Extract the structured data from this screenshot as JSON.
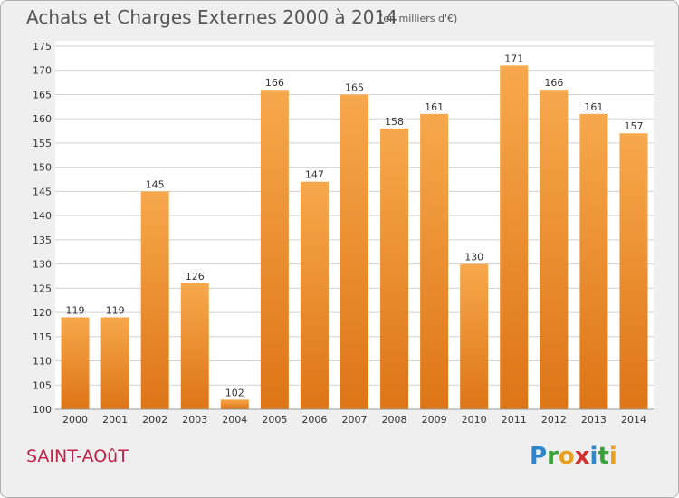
{
  "header": {
    "title": "Achats et Charges Externes 2000 à 2014",
    "subtitle": "(en milliers d'€)"
  },
  "footer": {
    "commune": "SAINT-AOûT",
    "logo_letters": [
      {
        "char": "P",
        "color": "#2e86c8"
      },
      {
        "char": "r",
        "color": "#3aa03a"
      },
      {
        "char": "o",
        "color": "#e8a020"
      },
      {
        "char": "x",
        "color": "#d03030"
      },
      {
        "char": "i",
        "color": "#2e86c8"
      },
      {
        "char": "t",
        "color": "#3aa03a"
      },
      {
        "char": "i",
        "color": "#e8a020"
      }
    ]
  },
  "colors": {
    "bar_top": "#f7a84c",
    "bar_bottom": "#dd7516",
    "grid": "#d2d2d2",
    "plot_bg": "#ffffff"
  },
  "chart_data": {
    "type": "bar",
    "title": "Achats et Charges Externes 2000 à 2014",
    "subtitle": "(en milliers d'€)",
    "categories": [
      "2000",
      "2001",
      "2002",
      "2003",
      "2004",
      "2005",
      "2006",
      "2007",
      "2008",
      "2009",
      "2010",
      "2011",
      "2012",
      "2013",
      "2014"
    ],
    "values": [
      119,
      119,
      145,
      126,
      102,
      166,
      147,
      165,
      158,
      161,
      130,
      171,
      166,
      161,
      157
    ],
    "ylim": [
      100,
      175
    ],
    "yticks": [
      100,
      105,
      110,
      115,
      120,
      125,
      130,
      135,
      140,
      145,
      150,
      155,
      160,
      165,
      170,
      175
    ],
    "grid": true,
    "data_labels": true
  }
}
